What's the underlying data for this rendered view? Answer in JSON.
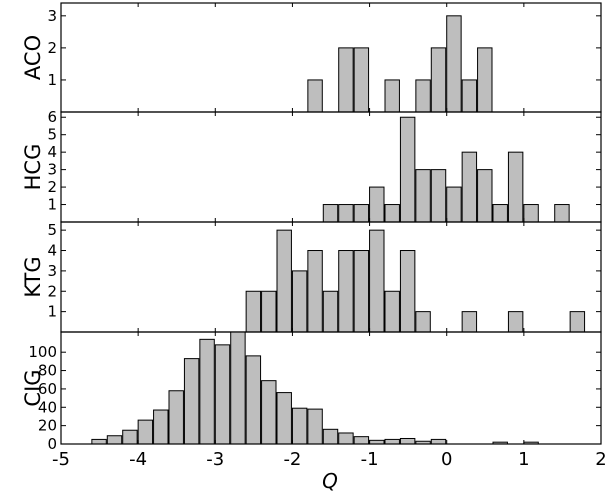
{
  "chart_data": {
    "type": "bar",
    "subtype": "stacked-histogram-panels",
    "xlabel": "Q",
    "xlim": [
      -5,
      2
    ],
    "xticks": [
      "-5",
      "-4",
      "-3",
      "-2",
      "-1",
      "0",
      "1",
      "2"
    ],
    "bin_width": 0.2,
    "bar_fill": "#bebebe",
    "bar_stroke": "#000000",
    "grid": false,
    "panels": [
      {
        "ylabel": "ACO",
        "ylim": [
          0,
          3.4
        ],
        "yticks": [
          "1",
          "2",
          "3"
        ],
        "bins": [
          {
            "x": -1.7,
            "y": 1
          },
          {
            "x": -1.3,
            "y": 2
          },
          {
            "x": -1.1,
            "y": 2
          },
          {
            "x": -0.7,
            "y": 1
          },
          {
            "x": -0.3,
            "y": 1
          },
          {
            "x": -0.1,
            "y": 2
          },
          {
            "x": 0.1,
            "y": 3
          },
          {
            "x": 0.3,
            "y": 1
          },
          {
            "x": 0.5,
            "y": 2
          }
        ]
      },
      {
        "ylabel": "HCG",
        "ylim": [
          0,
          6.3
        ],
        "yticks": [
          "1",
          "2",
          "3",
          "4",
          "5",
          "6"
        ],
        "bins": [
          {
            "x": -1.5,
            "y": 1
          },
          {
            "x": -1.3,
            "y": 1
          },
          {
            "x": -1.1,
            "y": 1
          },
          {
            "x": -0.9,
            "y": 2
          },
          {
            "x": -0.7,
            "y": 1
          },
          {
            "x": -0.5,
            "y": 6
          },
          {
            "x": -0.3,
            "y": 3
          },
          {
            "x": -0.1,
            "y": 3
          },
          {
            "x": 0.1,
            "y": 2
          },
          {
            "x": 0.3,
            "y": 4
          },
          {
            "x": 0.5,
            "y": 3
          },
          {
            "x": 0.7,
            "y": 1
          },
          {
            "x": 0.9,
            "y": 4
          },
          {
            "x": 1.1,
            "y": 1
          },
          {
            "x": 1.5,
            "y": 1
          }
        ]
      },
      {
        "ylabel": "KTG",
        "ylim": [
          0,
          5.4
        ],
        "yticks": [
          "1",
          "2",
          "3",
          "4",
          "5"
        ],
        "bins": [
          {
            "x": -2.5,
            "y": 2
          },
          {
            "x": -2.3,
            "y": 2
          },
          {
            "x": -2.1,
            "y": 5
          },
          {
            "x": -1.9,
            "y": 3
          },
          {
            "x": -1.7,
            "y": 4
          },
          {
            "x": -1.5,
            "y": 2
          },
          {
            "x": -1.3,
            "y": 4
          },
          {
            "x": -1.1,
            "y": 4
          },
          {
            "x": -0.9,
            "y": 5
          },
          {
            "x": -0.7,
            "y": 2
          },
          {
            "x": -0.5,
            "y": 4
          },
          {
            "x": -0.3,
            "y": 1
          },
          {
            "x": 0.3,
            "y": 1
          },
          {
            "x": 0.9,
            "y": 1
          },
          {
            "x": 1.7,
            "y": 1
          }
        ]
      },
      {
        "ylabel": "CIG",
        "ylim": [
          0,
          122
        ],
        "yticks": [
          "0",
          "20",
          "40",
          "60",
          "80",
          "100"
        ],
        "bins": [
          {
            "x": -4.5,
            "y": 5
          },
          {
            "x": -4.3,
            "y": 9
          },
          {
            "x": -4.1,
            "y": 15
          },
          {
            "x": -3.9,
            "y": 26
          },
          {
            "x": -3.7,
            "y": 37
          },
          {
            "x": -3.5,
            "y": 58
          },
          {
            "x": -3.3,
            "y": 93
          },
          {
            "x": -3.1,
            "y": 114
          },
          {
            "x": -2.9,
            "y": 108
          },
          {
            "x": -2.7,
            "y": 122
          },
          {
            "x": -2.5,
            "y": 96
          },
          {
            "x": -2.3,
            "y": 69
          },
          {
            "x": -2.1,
            "y": 56
          },
          {
            "x": -1.9,
            "y": 39
          },
          {
            "x": -1.7,
            "y": 38
          },
          {
            "x": -1.5,
            "y": 16
          },
          {
            "x": -1.3,
            "y": 12
          },
          {
            "x": -1.1,
            "y": 8
          },
          {
            "x": -0.9,
            "y": 4
          },
          {
            "x": -0.7,
            "y": 5
          },
          {
            "x": -0.5,
            "y": 6
          },
          {
            "x": -0.3,
            "y": 3
          },
          {
            "x": -0.1,
            "y": 5
          },
          {
            "x": 0.7,
            "y": 2
          },
          {
            "x": 1.1,
            "y": 2
          }
        ]
      }
    ]
  }
}
